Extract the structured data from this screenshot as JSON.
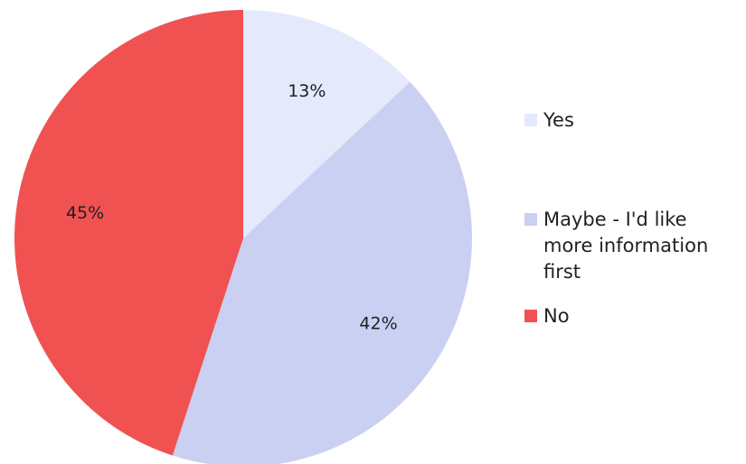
{
  "chart_data": {
    "type": "pie",
    "title": "",
    "start_angle_deg": 0,
    "direction": "clockwise",
    "slices": [
      {
        "label": "Yes",
        "value": 13,
        "display": "13%",
        "color": "#e4e9fb"
      },
      {
        "label": "Maybe - I'd like more information first",
        "value": 42,
        "display": "42%",
        "color": "#c9d0f1"
      },
      {
        "label": "No",
        "value": 45,
        "display": "45%",
        "color": "#f05252"
      }
    ],
    "legend_position": "right"
  }
}
